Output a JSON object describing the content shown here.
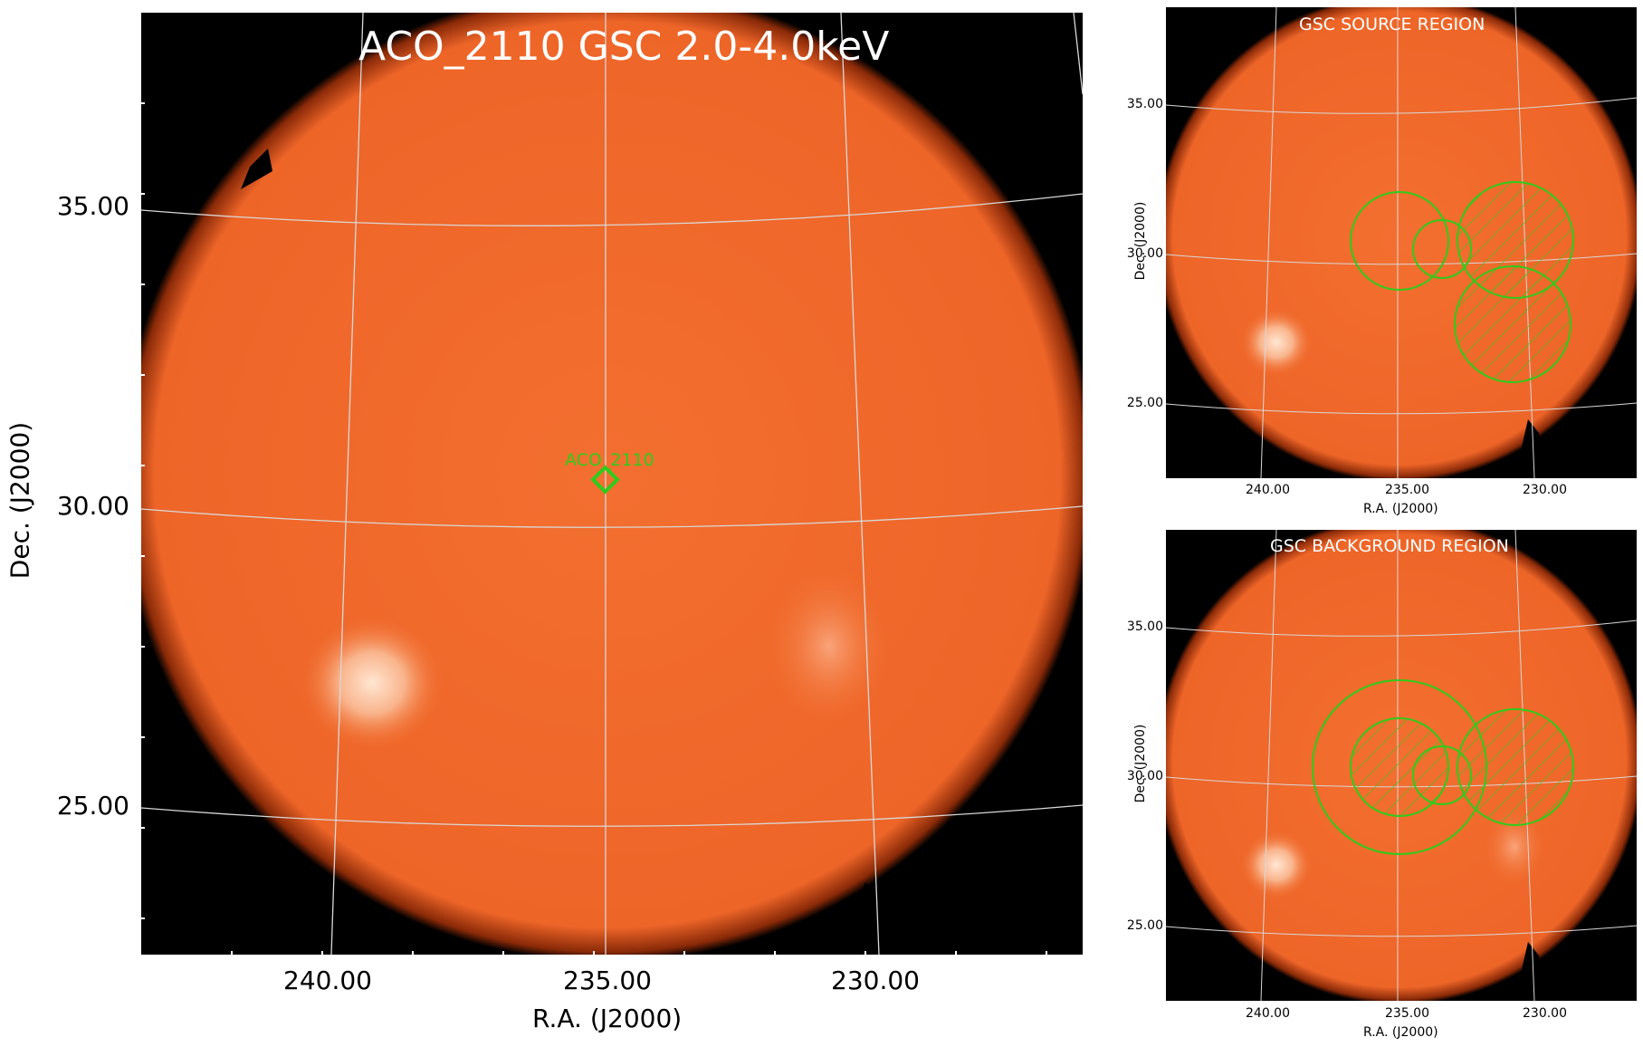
{
  "main_panel": {
    "title": "ACO_2110 GSC 2.0-4.0keV",
    "xlabel": "R.A. (J2000)",
    "ylabel": "Dec. (J2000)",
    "x_ticks": [
      "240.00",
      "235.00",
      "230.00"
    ],
    "y_ticks": [
      "35.00",
      "30.00",
      "25.00"
    ],
    "marker_label": "ACO_2110"
  },
  "source_panel": {
    "title": "GSC SOURCE REGION",
    "xlabel": "R.A. (J2000)",
    "ylabel": "Dec. (J2000)",
    "x_ticks": [
      "240.00",
      "235.00",
      "230.00"
    ],
    "y_ticks": [
      "35.00",
      "30.00",
      "25.00"
    ]
  },
  "background_panel": {
    "title": "GSC BACKGROUND REGION",
    "xlabel": "R.A. (J2000)",
    "ylabel": "Dec. (J2000)",
    "x_ticks": [
      "240.00",
      "235.00",
      "230.00"
    ],
    "y_ticks": [
      "35.00",
      "30.00",
      "25.00"
    ]
  },
  "colors": {
    "sky": "#f06a2a",
    "background": "#000000",
    "region": "#2ecc1a",
    "grid": "#d8d8d8"
  }
}
